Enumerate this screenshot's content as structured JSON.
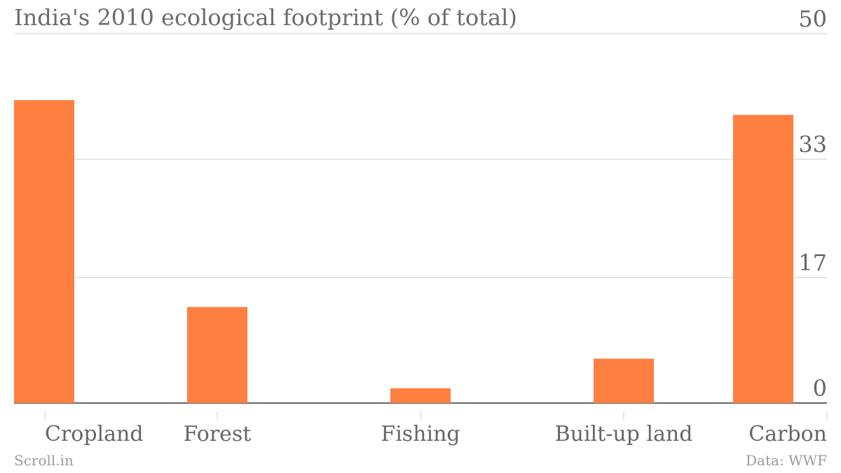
{
  "header": {
    "title": "India's 2010 ecological footprint (% of total)"
  },
  "footer": {
    "source_left": "Scroll.in",
    "source_right": "Data: WWF"
  },
  "colors": {
    "bar": "#ff7f41",
    "grid": "#dddddd",
    "baseline": "#666666",
    "text": "#666666"
  },
  "chart_data": {
    "type": "bar",
    "title": "India's 2010 ecological footprint (% of total)",
    "categories": [
      "Cropland",
      "Forest",
      "Fishing",
      "Built-up land",
      "Carbon"
    ],
    "values": [
      41,
      13,
      2,
      6,
      39
    ],
    "ylim": [
      0,
      50
    ],
    "yticks": [
      0,
      17,
      33,
      50
    ],
    "ytick_labels": [
      "0",
      "17",
      "33",
      "50"
    ],
    "y_axis_side": "right",
    "grid": true
  }
}
